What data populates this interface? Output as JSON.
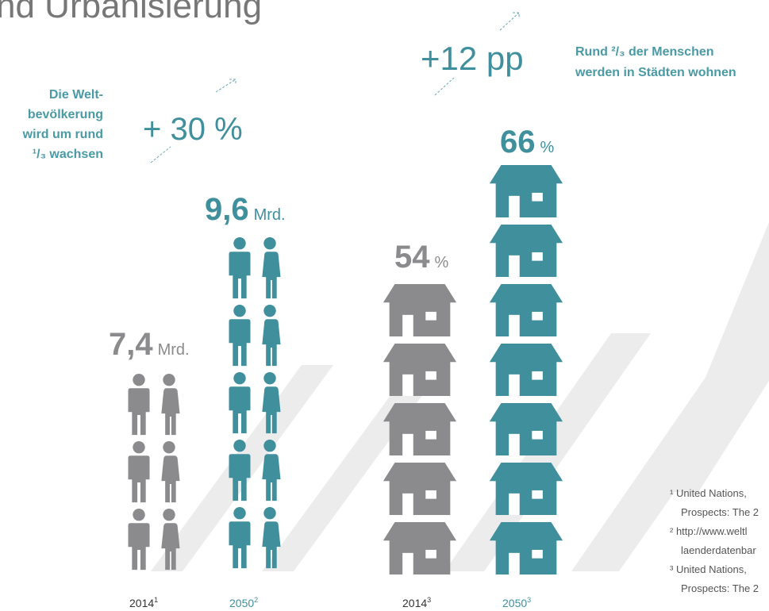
{
  "title": "nd Urbanisierung",
  "population": {
    "note": [
      "Die Welt-",
      "bevölkerung",
      "wird um rund",
      "¹/₃ wachsen"
    ],
    "change": "+ 30 %",
    "groups": [
      {
        "value": "7,4",
        "unit": "Mrd.",
        "year": "2014",
        "footnote": "1"
      },
      {
        "value": "9,6",
        "unit": "Mrd.",
        "year": "2050",
        "footnote": "2"
      }
    ]
  },
  "urbanization": {
    "note": [
      "Rund ²/₃ der Menschen",
      "werden in Städten wohnen"
    ],
    "change": "+12 pp",
    "groups": [
      {
        "value": "54",
        "unit": "%",
        "year": "2014",
        "footnote": "3"
      },
      {
        "value": "66",
        "unit": "%",
        "year": "2050",
        "footnote": "3"
      }
    ]
  },
  "footnotes": [
    "¹ United Nations,",
    "Prospects: The 2",
    "² http://www.weltl",
    "laenderdatenbar",
    "³ United Nations,",
    "Prospects: The 2"
  ]
}
